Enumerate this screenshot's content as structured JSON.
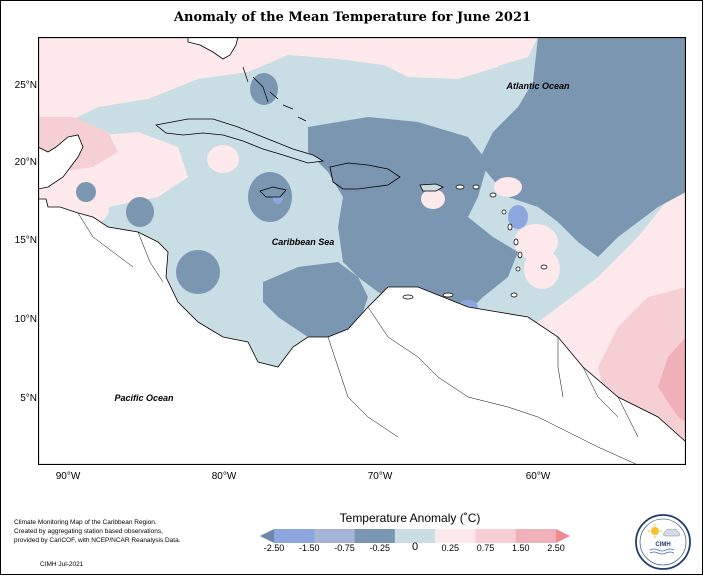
{
  "title": "Anomaly of the Mean Temperature for June 2021",
  "map": {
    "latitude_labels": [
      {
        "value": 25,
        "text": "25°N"
      },
      {
        "value": 20,
        "text": "20°N"
      },
      {
        "value": 15,
        "text": "15°N"
      },
      {
        "value": 10,
        "text": "10°N"
      },
      {
        "value": 5,
        "text": "5°N"
      }
    ],
    "longitude_labels": [
      {
        "value": -90,
        "text": "90°W"
      },
      {
        "value": -80,
        "text": "80°W"
      },
      {
        "value": -70,
        "text": "70°W"
      },
      {
        "value": -60,
        "text": "60°W"
      }
    ],
    "place_labels": {
      "atlantic": "Atlantic Ocean",
      "caribbean": "Caribbean Sea",
      "pacific": "Pacific Ocean"
    }
  },
  "legend": {
    "title": "Temperature Anomaly (˚C)",
    "ticks": [
      "-2.50",
      "-1.50",
      "-0.75",
      "-0.25",
      "0",
      "0.25",
      "0.75",
      "1.50",
      "2.50"
    ],
    "colors": [
      "#6e87ab",
      "#8ea6de",
      "#a5b5d8",
      "#7b96b1",
      "#c9dde4",
      "#fde8ec",
      "#f5cfd4",
      "#efb0b8",
      "#f08a92"
    ]
  },
  "credit": {
    "lines": [
      "Climate Monitoring Map of the Caribbean Region.",
      "Created by aggregating station based observations,",
      "provided by CariCOF, with NCEP/NCAR Reanalysis Data."
    ],
    "date": "CIMH Jul-2021"
  },
  "logo": {
    "text": "CIMH",
    "icon": "cimh-logo-icon"
  }
}
